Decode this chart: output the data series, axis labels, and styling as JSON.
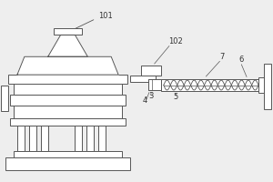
{
  "bg_color": "#eeeeee",
  "line_color": "#555555",
  "fill_color": "#ffffff",
  "label_color": "#333333",
  "figsize": [
    3.0,
    2.0
  ],
  "dpi": 100
}
